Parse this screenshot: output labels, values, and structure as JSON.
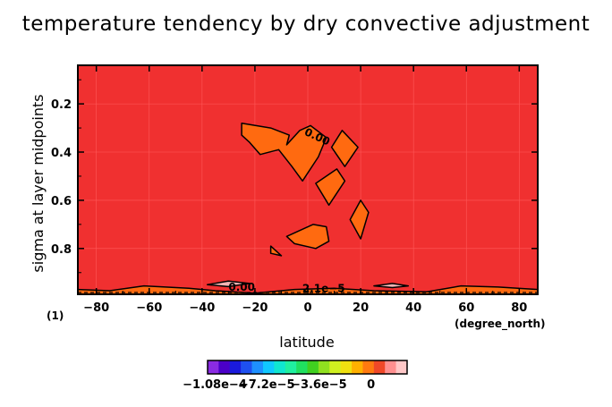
{
  "chart_data": {
    "type": "heatmap",
    "title": "temperature tendency by dry convective adjustment",
    "xlabel": "latitude",
    "ylabel": "sigma at layer midpoints",
    "x_units": "(degree_north)",
    "y_units": "(1)",
    "xlim": [
      -87,
      87
    ],
    "ylim": [
      0.04,
      0.99
    ],
    "y_inverted": true,
    "x_ticks": [
      -80,
      -60,
      -40,
      -20,
      0,
      20,
      40,
      60,
      80
    ],
    "x_tick_labels": [
      "−80",
      "−60",
      "−40",
      "−20",
      "0",
      "20",
      "40",
      "60",
      "80"
    ],
    "y_ticks": [
      0.2,
      0.4,
      0.6,
      0.8
    ],
    "y_tick_labels": [
      "0.2",
      "0.4",
      "0.6",
      "0.8"
    ],
    "background_color": "#f03030",
    "contour_labels": [
      {
        "text": "0.00",
        "lat": 3,
        "sigma": 0.35
      },
      {
        "text": "0.00",
        "lat": -25,
        "sigma": 0.975
      },
      {
        "text": "2.1e−5",
        "lat": 6,
        "sigma": 0.98
      }
    ],
    "regions": [
      {
        "name": "upper-central",
        "color": "#ff6a10",
        "points": [
          [
            -25,
            0.28
          ],
          [
            -14,
            0.3
          ],
          [
            -7,
            0.33
          ],
          [
            -8,
            0.37
          ],
          [
            -3,
            0.31
          ],
          [
            1,
            0.29
          ],
          [
            7,
            0.34
          ],
          [
            4,
            0.42
          ],
          [
            -2,
            0.52
          ],
          [
            -6,
            0.46
          ],
          [
            -11,
            0.39
          ],
          [
            -18,
            0.41
          ],
          [
            -22,
            0.36
          ],
          [
            -25,
            0.33
          ]
        ]
      },
      {
        "name": "cell-right-upper",
        "color": "#ff6a10",
        "points": [
          [
            13,
            0.31
          ],
          [
            19,
            0.38
          ],
          [
            14,
            0.46
          ],
          [
            9,
            0.38
          ]
        ]
      },
      {
        "name": "cell-right-mid",
        "color": "#ff6a10",
        "points": [
          [
            11,
            0.47
          ],
          [
            14,
            0.52
          ],
          [
            8,
            0.62
          ],
          [
            3,
            0.53
          ]
        ]
      },
      {
        "name": "cell-right-low",
        "color": "#ff6a10",
        "points": [
          [
            20,
            0.6
          ],
          [
            23,
            0.65
          ],
          [
            20,
            0.76
          ],
          [
            16,
            0.68
          ]
        ]
      },
      {
        "name": "cell-mid-low",
        "color": "#ff6a10",
        "points": [
          [
            2,
            0.7
          ],
          [
            7,
            0.71
          ],
          [
            8,
            0.77
          ],
          [
            3,
            0.8
          ],
          [
            -5,
            0.78
          ],
          [
            -8,
            0.75
          ]
        ]
      },
      {
        "name": "cell-small",
        "color": "#ff6a10",
        "points": [
          [
            -14,
            0.79
          ],
          [
            -10,
            0.83
          ],
          [
            -14,
            0.82
          ]
        ]
      },
      {
        "name": "surface-band",
        "color": "#ff6a10",
        "points": [
          [
            -87,
            0.99
          ],
          [
            -87,
            0.97
          ],
          [
            -75,
            0.975
          ],
          [
            -62,
            0.955
          ],
          [
            -45,
            0.965
          ],
          [
            -35,
            0.975
          ],
          [
            -20,
            0.985
          ],
          [
            -5,
            0.97
          ],
          [
            10,
            0.965
          ],
          [
            25,
            0.975
          ],
          [
            45,
            0.98
          ],
          [
            58,
            0.955
          ],
          [
            72,
            0.96
          ],
          [
            87,
            0.97
          ],
          [
            87,
            0.99
          ]
        ]
      },
      {
        "name": "pink-left",
        "color": "#f4b4b4",
        "points": [
          [
            -38,
            0.95
          ],
          [
            -30,
            0.935
          ],
          [
            -22,
            0.945
          ],
          [
            -30,
            0.958
          ]
        ]
      },
      {
        "name": "pink-right",
        "color": "#f4b4b4",
        "points": [
          [
            25,
            0.955
          ],
          [
            32,
            0.945
          ],
          [
            38,
            0.955
          ],
          [
            32,
            0.962
          ]
        ]
      }
    ],
    "colorbar": {
      "tick_labels": [
        "−1.08e−4",
        "−7.2e−5",
        "−3.6e−5",
        "0"
      ],
      "tick_values": [
        -0.000108,
        -7.2e-05,
        -3.6e-05,
        0
      ],
      "colors": [
        "#8a2be2",
        "#4b00c8",
        "#1a1adc",
        "#1e50f0",
        "#1e90ff",
        "#10c8ff",
        "#10e6d0",
        "#20f0a0",
        "#20e060",
        "#40d020",
        "#90e020",
        "#d0f020",
        "#f0e010",
        "#ffb000",
        "#ff7a10",
        "#f04828",
        "#ff9090",
        "#ffc8c8"
      ]
    }
  }
}
